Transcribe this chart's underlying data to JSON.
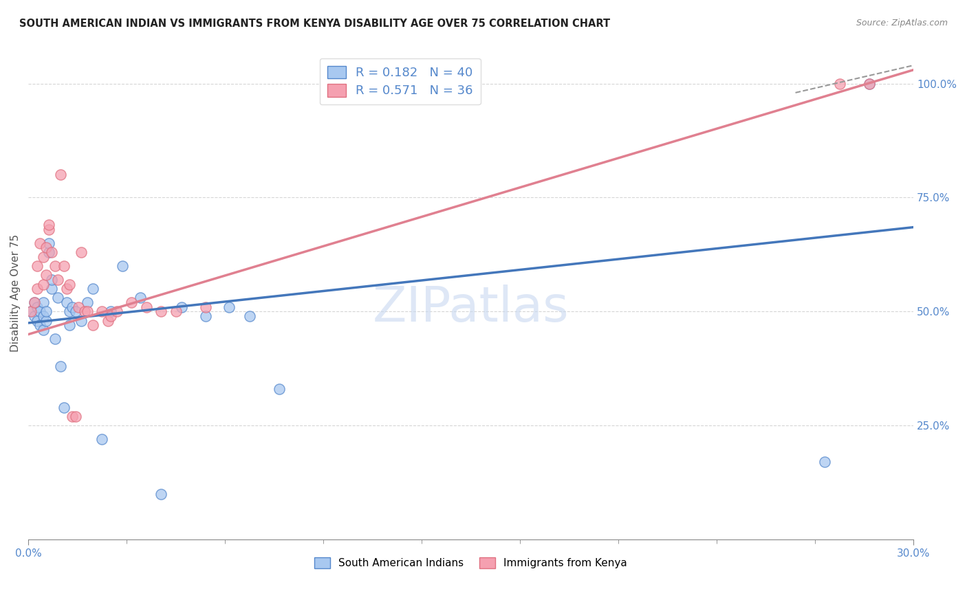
{
  "title": "SOUTH AMERICAN INDIAN VS IMMIGRANTS FROM KENYA DISABILITY AGE OVER 75 CORRELATION CHART",
  "source": "Source: ZipAtlas.com",
  "ylabel": "Disability Age Over 75",
  "legend_label1": "South American Indians",
  "legend_label2": "Immigrants from Kenya",
  "R1": 0.182,
  "N1": 40,
  "R2": 0.571,
  "N2": 36,
  "color_blue": "#A8C8F0",
  "color_pink": "#F5A0B0",
  "color_blue_edge": "#5588CC",
  "color_pink_edge": "#E07080",
  "color_blue_line": "#4477BB",
  "color_pink_line": "#E08090",
  "color_text_blue": "#5588CC",
  "blue_x": [
    0.001,
    0.002,
    0.002,
    0.003,
    0.003,
    0.004,
    0.004,
    0.005,
    0.005,
    0.005,
    0.006,
    0.006,
    0.007,
    0.007,
    0.008,
    0.008,
    0.009,
    0.01,
    0.011,
    0.012,
    0.013,
    0.014,
    0.014,
    0.015,
    0.016,
    0.018,
    0.02,
    0.022,
    0.025,
    0.028,
    0.032,
    0.038,
    0.045,
    0.052,
    0.06,
    0.068,
    0.075,
    0.085,
    0.27,
    0.285
  ],
  "blue_y": [
    0.5,
    0.49,
    0.52,
    0.48,
    0.51,
    0.47,
    0.5,
    0.46,
    0.49,
    0.52,
    0.48,
    0.5,
    0.63,
    0.65,
    0.55,
    0.57,
    0.44,
    0.53,
    0.38,
    0.29,
    0.52,
    0.5,
    0.47,
    0.51,
    0.5,
    0.48,
    0.52,
    0.55,
    0.22,
    0.5,
    0.6,
    0.53,
    0.1,
    0.51,
    0.49,
    0.51,
    0.49,
    0.33,
    0.17,
    1.0
  ],
  "pink_x": [
    0.001,
    0.002,
    0.003,
    0.003,
    0.004,
    0.005,
    0.005,
    0.006,
    0.006,
    0.007,
    0.007,
    0.008,
    0.009,
    0.01,
    0.011,
    0.012,
    0.013,
    0.014,
    0.015,
    0.016,
    0.017,
    0.018,
    0.019,
    0.02,
    0.022,
    0.025,
    0.027,
    0.028,
    0.03,
    0.035,
    0.04,
    0.045,
    0.05,
    0.06,
    0.275,
    0.285
  ],
  "pink_y": [
    0.5,
    0.52,
    0.55,
    0.6,
    0.65,
    0.62,
    0.56,
    0.64,
    0.58,
    0.68,
    0.69,
    0.63,
    0.6,
    0.57,
    0.8,
    0.6,
    0.55,
    0.56,
    0.27,
    0.27,
    0.51,
    0.63,
    0.5,
    0.5,
    0.47,
    0.5,
    0.48,
    0.49,
    0.5,
    0.52,
    0.51,
    0.5,
    0.5,
    0.51,
    1.0,
    1.0
  ],
  "xmin": 0.0,
  "xmax": 0.3,
  "ymin": 0.0,
  "ymax": 1.08,
  "right_yticks": [
    0.25,
    0.5,
    0.75,
    1.0
  ],
  "right_ytick_labels": [
    "25.0%",
    "50.0%",
    "75.0%",
    "100.0%"
  ],
  "grid_color": "#CCCCCC",
  "watermark": "ZIPatlas",
  "blue_trend_x0": 0.0,
  "blue_trend_y0": 0.475,
  "blue_trend_x1": 0.3,
  "blue_trend_y1": 0.685,
  "pink_trend_x0": 0.0,
  "pink_trend_y0": 0.45,
  "pink_trend_x1": 0.3,
  "pink_trend_y1": 1.03
}
